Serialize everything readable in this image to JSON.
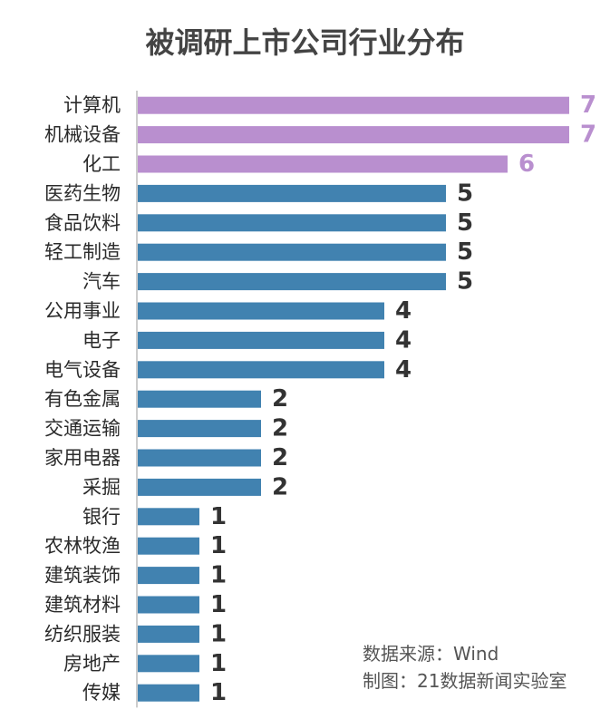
{
  "chart_data": {
    "type": "bar",
    "orientation": "horizontal",
    "title": "被调研上市公司行业分布",
    "categories": [
      "计算机",
      "机械设备",
      "化工",
      "医药生物",
      "食品饮料",
      "轻工制造",
      "汽车",
      "公用事业",
      "电子",
      "电气设备",
      "有色金属",
      "交通运输",
      "家用电器",
      "采掘",
      "银行",
      "农林牧渔",
      "建筑装饰",
      "建筑材料",
      "纺织服装",
      "房地产",
      "传媒"
    ],
    "values": [
      7,
      7,
      6,
      5,
      5,
      5,
      5,
      4,
      4,
      4,
      2,
      2,
      2,
      2,
      1,
      1,
      1,
      1,
      1,
      1,
      1
    ],
    "highlight_count": 3,
    "colors": {
      "highlight": "#b98fcf",
      "default": "#4182b0",
      "axis": "#cccccc"
    },
    "xlim": [
      0,
      7
    ],
    "grid": false,
    "legend": "none"
  },
  "source": {
    "data_source": "数据来源：Wind",
    "made_by": "制图：21数据新闻实验室"
  }
}
